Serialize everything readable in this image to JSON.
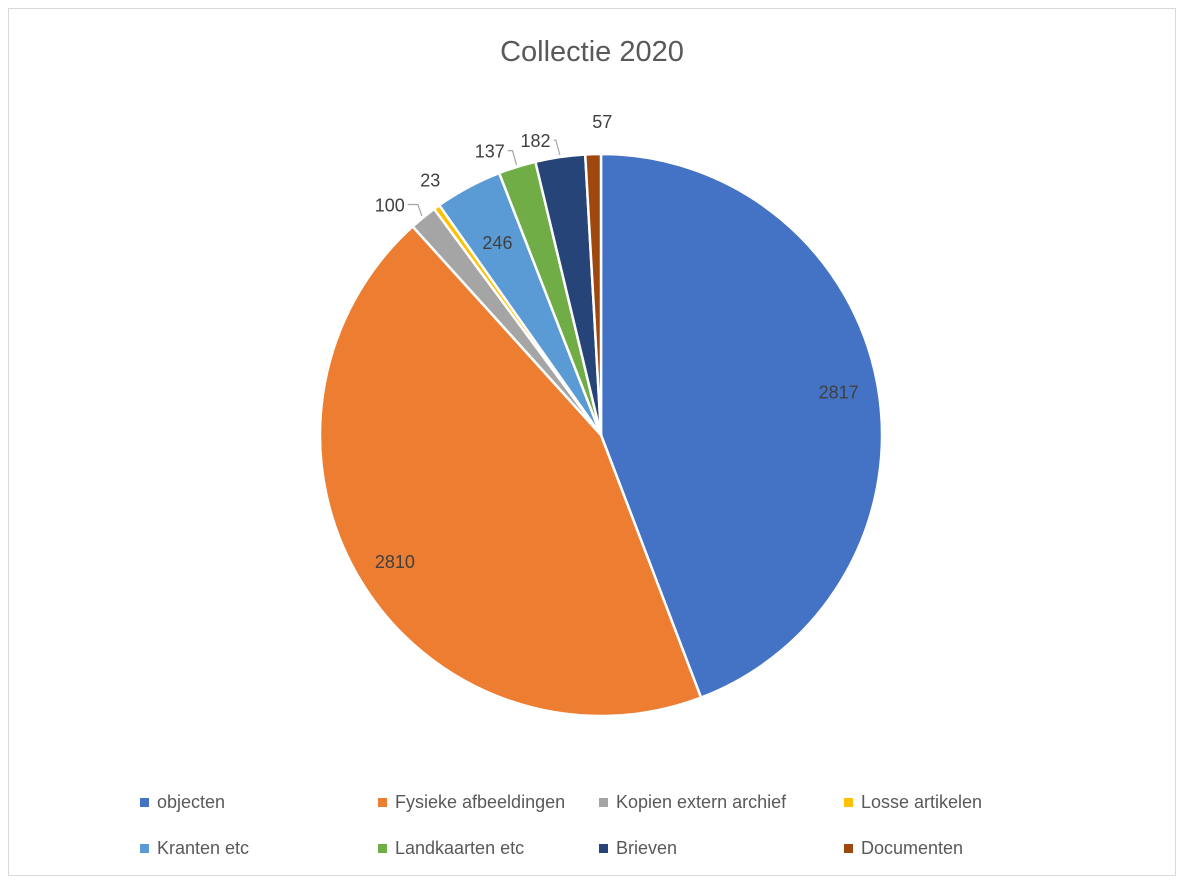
{
  "chart_data": {
    "type": "pie",
    "title": "Collectie 2020",
    "categories": [
      "objecten",
      "Fysieke afbeeldingen",
      "Kopien extern archief",
      "Losse artikelen",
      "Kranten etc",
      "Landkaarten etc",
      "Brieven",
      "Documenten"
    ],
    "values": [
      2817,
      2810,
      100,
      23,
      246,
      137,
      182,
      57
    ],
    "data_labels": [
      "2817",
      "2810",
      "100",
      "23",
      "246",
      "137",
      "182",
      "57"
    ],
    "colors": [
      "#4472c4",
      "#ed7d31",
      "#a5a5a5",
      "#ffc000",
      "#5b9bd5",
      "#70ad47",
      "#264478",
      "#9e480e"
    ],
    "legend_position": "bottom",
    "start_angle_deg": 0,
    "direction": "clockwise"
  }
}
